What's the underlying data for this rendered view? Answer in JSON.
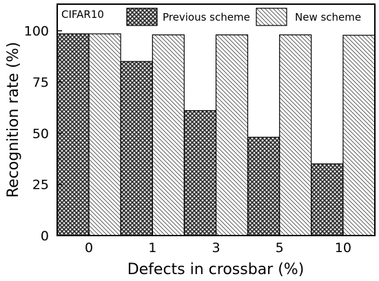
{
  "chart_data": {
    "type": "bar",
    "title": "",
    "annotation": "CIFAR10",
    "xlabel": "Defects in crossbar (%)",
    "ylabel": "Recognition rate (%)",
    "categories": [
      "0",
      "1",
      "3",
      "5",
      "10"
    ],
    "ylim": [
      0,
      113
    ],
    "yticks": [
      0,
      25,
      50,
      75,
      100
    ],
    "grid": false,
    "legend_position": "top",
    "series": [
      {
        "name": "Previous scheme",
        "values": [
          98.5,
          85,
          61,
          48,
          35
        ],
        "pattern": "crosshatch-dark"
      },
      {
        "name": "New scheme",
        "values": [
          98.5,
          98,
          98,
          98,
          97.8
        ],
        "pattern": "diagonal-light"
      }
    ]
  }
}
